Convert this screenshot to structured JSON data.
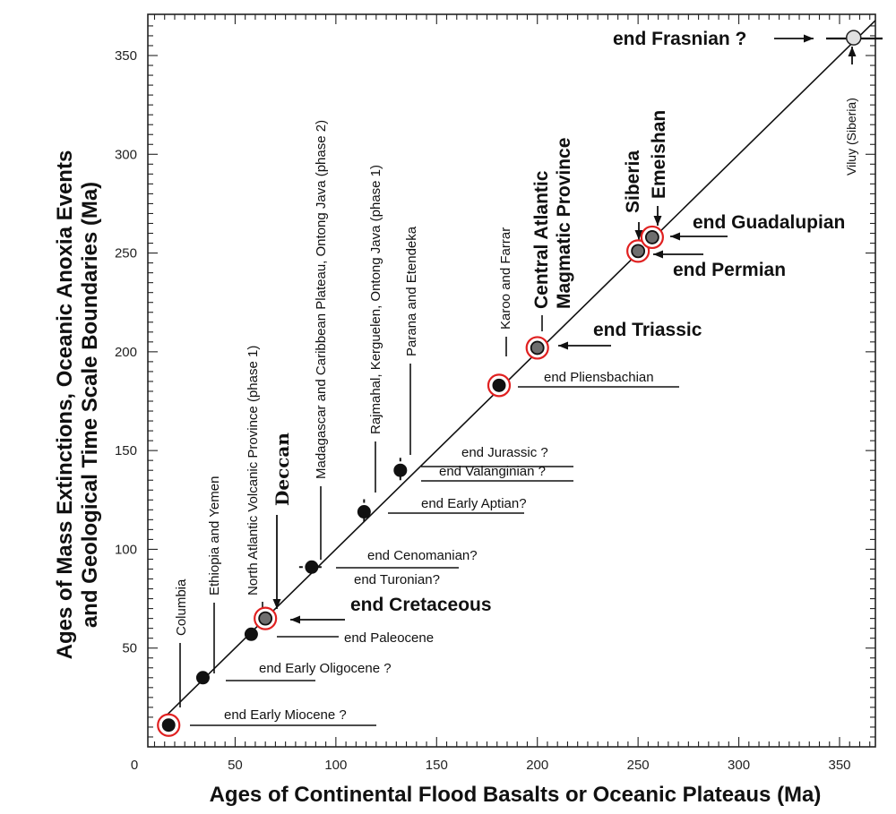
{
  "chart_data": {
    "type": "scatter",
    "xlabel": "Ages of Continental Flood Basalts or Oceanic Plateaus (Ma)",
    "ylabel_line1": "Ages of Mass Extinctions, Oceanic Anoxia Events",
    "ylabel_line2": "and Geological Time Scale Boundaries (Ma)",
    "xlim": [
      0,
      370
    ],
    "ylim": [
      0,
      372
    ],
    "x_ticks": [
      0,
      50,
      100,
      150,
      200,
      250,
      300,
      350
    ],
    "y_ticks": [
      50,
      100,
      150,
      200,
      250,
      300,
      350
    ],
    "reference_line": "y = x",
    "points": [
      {
        "name": "Columbia",
        "x": 17,
        "y": 11,
        "circled": true
      },
      {
        "name": "Ethiopia and Yemen",
        "x": 34,
        "y": 35,
        "circled": false
      },
      {
        "name": "North Atlantic Volcanic Province (phase 1)",
        "x": 58,
        "y": 57,
        "circled": false
      },
      {
        "name": "Deccan",
        "x": 65,
        "y": 65,
        "circled": true
      },
      {
        "name": "Madagascar and Caribbean Plateau, Ontong Java (phase 2)",
        "x": 88,
        "y": 91,
        "circled": false
      },
      {
        "name": "Rajmahal, Kerguelen, Ontong Java (phase 1)",
        "x": 114,
        "y": 119,
        "circled": false
      },
      {
        "name": "Parana and Etendeka",
        "x": 132,
        "y": 140,
        "circled": false
      },
      {
        "name": "Karoo and Farrar",
        "x": 181,
        "y": 183,
        "circled": true
      },
      {
        "name": "Central Atlantic Magmatic Province",
        "x": 200,
        "y": 202,
        "circled": true
      },
      {
        "name": "Siberia",
        "x": 250,
        "y": 251,
        "circled": true
      },
      {
        "name": "Emeishan",
        "x": 257,
        "y": 258,
        "circled": true
      },
      {
        "name": "Viluy (Siberia)",
        "x": 357,
        "y": 359,
        "circled": false
      }
    ],
    "province_labels": {
      "columbia": "Columbia",
      "ethiopia": "Ethiopia and Yemen",
      "navp": "North Atlantic Volcanic Province (phase 1)",
      "deccan": "Deccan",
      "madagascar": "Madagascar and Caribbean Plateau, Ontong Java (phase 2)",
      "rajmahal": "Rajmahal, Kerguelen, Ontong Java (phase 1)",
      "parana": "Parana and Etendeka",
      "karoo": "Karoo and Farrar",
      "camp1": "Central Atlantic",
      "camp2": "Magmatic Province",
      "siberia": "Siberia",
      "emeishan": "Emeishan",
      "viluy": "Viluy (Siberia)"
    },
    "event_labels": {
      "miocene": "end Early Miocene ?",
      "oligocene": "end Early Oligocene ?",
      "paleocene": "end Paleocene",
      "cretaceous": "end Cretaceous",
      "turonian": "end Turonian?",
      "cenomanian": "end Cenomanian?",
      "aptian": "end Early Aptian?",
      "valanginian": "end Valanginian ?",
      "jurassic": "end Jurassic ?",
      "pliensbachian": "end Pliensbachian",
      "triassic": "end Triassic",
      "permian": "end Permian",
      "guadalupian": "end Guadalupian",
      "frasnian": "end Frasnian ?"
    }
  }
}
